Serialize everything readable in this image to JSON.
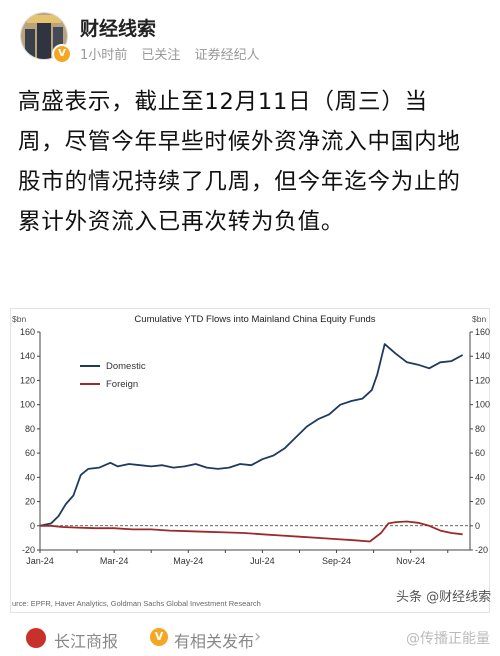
{
  "header": {
    "author": "财经线索",
    "time": "1小时前",
    "followed": "已关注",
    "role": "证券经纪人"
  },
  "post": {
    "text": "高盛表示，截止至12月11日（周三）当周，尽管今年早些时候外资净流入中国内地股市的情况持续了几周，但今年迄今为止的累计外资流入已再次转为负值。"
  },
  "chart_data": {
    "type": "line",
    "title": "Cumulative YTD Flows into Mainland China Equity Funds",
    "ylabel": "$bn",
    "ylim": [
      -20,
      160
    ],
    "y_ticks": [
      -20,
      0,
      20,
      40,
      60,
      80,
      100,
      120,
      140,
      160
    ],
    "x_ticks": [
      "Jan-24",
      "Mar-24",
      "May-24",
      "Jul-24",
      "Sep-24",
      "Nov-24"
    ],
    "x_tick_months": [
      0,
      2,
      4,
      6,
      8,
      10
    ],
    "xlim_months": [
      0,
      11.6
    ],
    "legend_position": "top-left",
    "source": "urce: EPFR, Haver Analytics, Goldman Sachs Global Investment Research",
    "series": [
      {
        "name": "Domestic",
        "color": "#1f3a5f",
        "x": [
          0,
          0.3,
          0.5,
          0.7,
          0.9,
          1.1,
          1.3,
          1.6,
          1.9,
          2.1,
          2.4,
          2.7,
          3.0,
          3.3,
          3.6,
          3.9,
          4.2,
          4.5,
          4.8,
          5.1,
          5.4,
          5.7,
          6.0,
          6.3,
          6.6,
          6.9,
          7.2,
          7.5,
          7.8,
          8.1,
          8.4,
          8.7,
          8.95,
          9.1,
          9.3,
          9.6,
          9.9,
          10.2,
          10.5,
          10.8,
          11.1,
          11.4
        ],
        "y": [
          0,
          2,
          8,
          18,
          25,
          42,
          47,
          48,
          52,
          49,
          51,
          50,
          49,
          50,
          48,
          49,
          51,
          48,
          47,
          48,
          51,
          50,
          55,
          58,
          64,
          73,
          82,
          88,
          92,
          100,
          103,
          105,
          112,
          125,
          150,
          142,
          135,
          133,
          130,
          135,
          136,
          141
        ]
      },
      {
        "name": "Foreign",
        "color": "#9b2a2a",
        "x": [
          0,
          0.3,
          0.6,
          1.0,
          1.5,
          2.0,
          2.5,
          3.0,
          3.5,
          4.0,
          4.5,
          5.0,
          5.5,
          6.0,
          6.5,
          7.0,
          7.5,
          8.0,
          8.5,
          8.9,
          9.2,
          9.4,
          9.6,
          9.9,
          10.2,
          10.5,
          10.8,
          11.1,
          11.4
        ],
        "y": [
          0,
          0,
          -1,
          -1.5,
          -2,
          -2,
          -3,
          -3,
          -4,
          -4.5,
          -5,
          -5.5,
          -6,
          -7,
          -8,
          -9,
          -10,
          -11,
          -12,
          -13,
          -6,
          2,
          3,
          3.5,
          2.5,
          0,
          -4,
          -6,
          -7
        ]
      }
    ]
  },
  "watermark_toutiao": "头条 @财经线索",
  "footer": {
    "source_name": "长江商报",
    "related": "有相关发布",
    "arrow": "›",
    "watermark": "@传播正能量"
  }
}
